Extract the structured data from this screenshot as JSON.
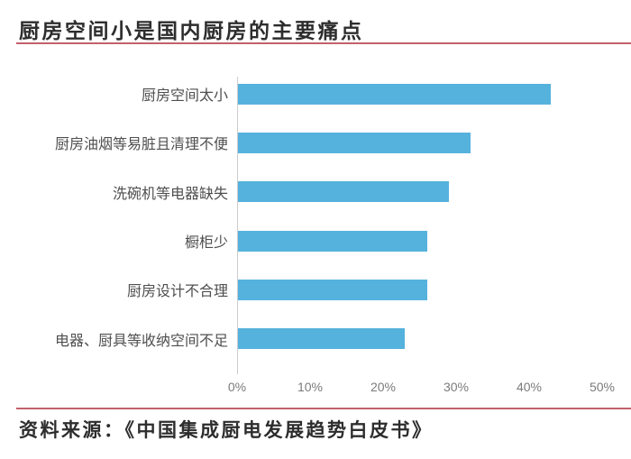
{
  "title": "厨房空间小是国内厨房的主要痛点",
  "source_note": "资料来源：《中国集成厨电发展趋势白皮书》",
  "colors": {
    "bar": "#55b2dd",
    "accent_line": "#c4606c",
    "title_text": "#2d2d2d",
    "category_text": "#4f4f4f",
    "tick_text": "#7a7a7a",
    "axis_line": "#cccccc"
  },
  "chart_data": {
    "type": "bar",
    "orientation": "horizontal",
    "title": "厨房空间小是国内厨房的主要痛点",
    "categories": [
      "厨房空间太小",
      "厨房油烟等易脏且清理不便",
      "洗碗机等电器缺失",
      "橱柜少",
      "厨房设计不合理",
      "电器、厨具等收纳空间不足"
    ],
    "values": [
      43,
      32,
      29,
      26,
      26,
      23
    ],
    "unit": "%",
    "xlim": [
      0,
      50
    ],
    "x_ticks": [
      "0%",
      "10%",
      "20%",
      "30%",
      "40%",
      "50%"
    ],
    "grid": false,
    "legend": false
  }
}
